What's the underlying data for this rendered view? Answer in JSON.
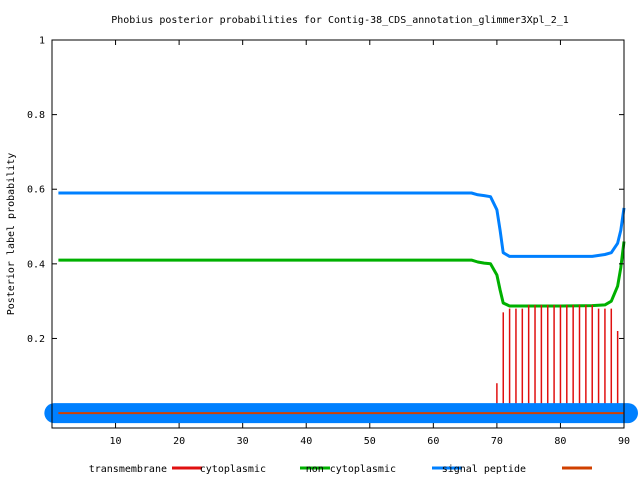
{
  "chart_data": {
    "type": "line",
    "title": "Phobius posterior probabilities for Contig-38_CDS_annotation_glimmer3Xpl_2_1",
    "xlabel": "",
    "ylabel": "Posterior label probability",
    "xlim": [
      0,
      90
    ],
    "ylim": [
      -0.04,
      1
    ],
    "xticks": [
      "10",
      "20",
      "30",
      "40",
      "50",
      "60",
      "70",
      "80",
      "90"
    ],
    "yticks": [
      "0.2",
      "0.4",
      "0.6",
      "0.8",
      "1"
    ],
    "grid": false,
    "legend_position": "bottom",
    "colors": {
      "transmembrane": "#e01010",
      "cytoplasmic": "#00b000",
      "non_cytoplasmic": "#0080ff",
      "signal_peptide": "#d04000"
    },
    "series": [
      {
        "name": "transmembrane",
        "style": "impulses",
        "x": [
          67,
          68,
          69,
          70,
          71,
          72,
          73,
          74,
          75,
          76,
          77,
          78,
          79,
          80,
          81,
          82,
          83,
          84,
          85,
          86,
          87,
          88,
          89
        ],
        "values": [
          0.005,
          0.01,
          0.02,
          0.08,
          0.27,
          0.28,
          0.28,
          0.28,
          0.29,
          0.29,
          0.29,
          0.29,
          0.29,
          0.29,
          0.29,
          0.29,
          0.29,
          0.29,
          0.29,
          0.28,
          0.28,
          0.28,
          0.22
        ]
      },
      {
        "name": "cytoplasmic",
        "style": "line",
        "x": [
          1,
          10,
          20,
          30,
          40,
          50,
          60,
          66,
          67,
          68,
          69,
          70,
          70.5,
          71,
          72,
          73,
          75,
          80,
          85,
          87,
          88,
          89,
          89.5,
          90
        ],
        "values": [
          0.41,
          0.41,
          0.41,
          0.41,
          0.41,
          0.41,
          0.41,
          0.41,
          0.405,
          0.402,
          0.4,
          0.37,
          0.33,
          0.295,
          0.287,
          0.287,
          0.287,
          0.287,
          0.288,
          0.29,
          0.3,
          0.34,
          0.39,
          0.46
        ]
      },
      {
        "name": "non cytoplasmic",
        "style": "line",
        "x": [
          1,
          10,
          20,
          30,
          40,
          50,
          60,
          66,
          67,
          68,
          69,
          70,
          70.5,
          71,
          72,
          73,
          75,
          80,
          85,
          87,
          88,
          89,
          89.5,
          90
        ],
        "values": [
          0.59,
          0.59,
          0.59,
          0.59,
          0.59,
          0.59,
          0.59,
          0.59,
          0.585,
          0.583,
          0.58,
          0.545,
          0.49,
          0.43,
          0.42,
          0.42,
          0.42,
          0.42,
          0.42,
          0.425,
          0.43,
          0.455,
          0.49,
          0.55
        ]
      },
      {
        "name": "signal peptide",
        "style": "line",
        "x": [
          1,
          10,
          20,
          30,
          40,
          50,
          60,
          70,
          80,
          90
        ],
        "values": [
          0,
          0,
          0,
          0,
          0,
          0,
          0,
          0,
          0,
          0
        ]
      }
    ]
  }
}
